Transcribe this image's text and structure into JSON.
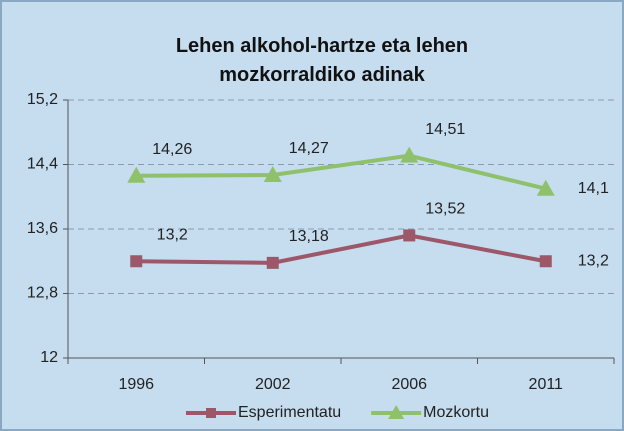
{
  "chart_data": {
    "type": "line",
    "title": "Lehen alkohol-hartze eta lehen mozkorraldiko adinak",
    "categories": [
      "1996",
      "2002",
      "2006",
      "2011"
    ],
    "series": [
      {
        "name": "Esperimentatu",
        "color": "#9c5868",
        "marker": "square",
        "values": [
          13.2,
          13.18,
          13.52,
          13.2
        ],
        "value_labels": [
          "13,2",
          "13,18",
          "13,52",
          "13,2"
        ]
      },
      {
        "name": "Mozkortu",
        "color": "#8fc16c",
        "marker": "triangle",
        "values": [
          14.26,
          14.27,
          14.51,
          14.1
        ],
        "value_labels": [
          "14,26",
          "14,27",
          "14,51",
          "14,1"
        ]
      }
    ],
    "ylim": [
      12,
      15.2
    ],
    "yticks": [
      12,
      {
        "value": 12.8,
        "label": "12,8"
      },
      {
        "value": 13.6,
        "label": "13,6"
      },
      {
        "value": 14.4,
        "label": "14,4"
      },
      {
        "value": 15.2,
        "label": "15,2"
      }
    ],
    "grid": true,
    "legend": "bottom"
  }
}
